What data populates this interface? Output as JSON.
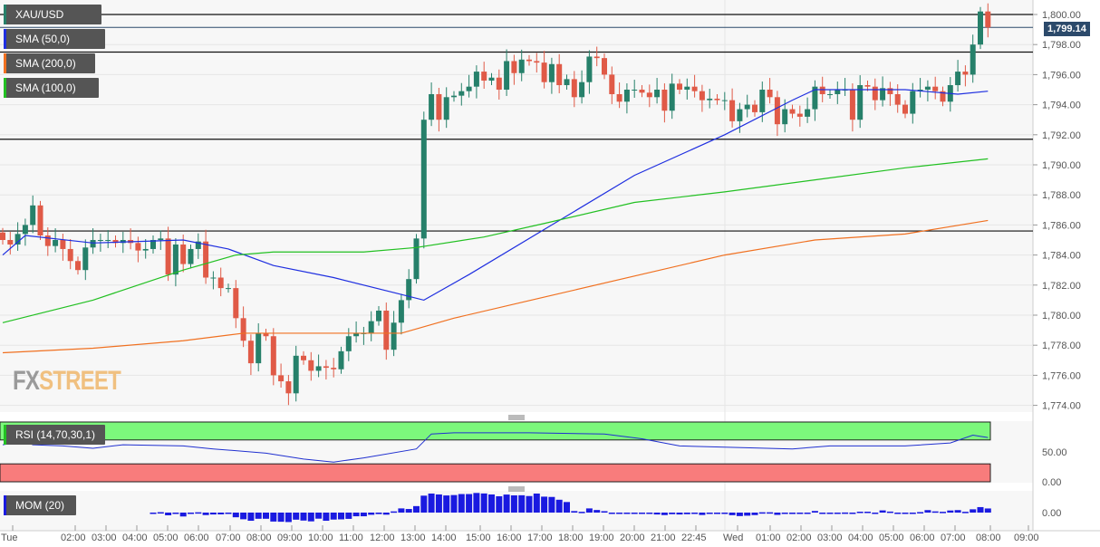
{
  "legend": {
    "symbol": "XAU/USD",
    "sma50": "SMA (50,0)",
    "sma200": "SMA (200,0)",
    "sma100": "SMA (100,0)",
    "rsi": "RSI (14,70,30,1)",
    "mom": "MOM (20)"
  },
  "colors": {
    "up": "#26806a",
    "down": "#e05a47",
    "sma50": "#1f2fe0",
    "sma100": "#22c022",
    "sma200": "#f07020",
    "rsi_over": "#7cf87c",
    "rsi_under": "#f87c7c",
    "mom": "#1a1ae0"
  },
  "logo": {
    "fx": "FX",
    "street": "STREET"
  },
  "current_price": "1,799.14",
  "chart_data": [
    {
      "type": "candlestick",
      "ylim": [
        1773,
        1802
      ],
      "yticks": [
        "1,800.00",
        "1,798.00",
        "1,796.00",
        "1,794.00",
        "1,792.00",
        "1,790.00",
        "1,788.00",
        "1,786.00",
        "1,784.00",
        "1,782.00",
        "1,780.00",
        "1,778.00",
        "1,776.00",
        "1,774.00"
      ],
      "ytick_values": [
        1800,
        1798,
        1796,
        1794,
        1792,
        1790,
        1788,
        1786,
        1784,
        1782,
        1780,
        1778,
        1776,
        1774
      ],
      "xticks": [
        "Tue",
        "02:00",
        "03:00",
        "04:00",
        "05:00",
        "06:00",
        "07:00",
        "08:00",
        "09:00",
        "10:00",
        "11:00",
        "12:00",
        "13:00",
        "14:00",
        "15:00",
        "16:00",
        "17:00",
        "18:00",
        "19:00",
        "20:00",
        "21:00",
        "22:45",
        "Wed",
        "01:00",
        "02:00",
        "03:00",
        "04:00",
        "05:00",
        "06:00",
        "07:00",
        "08:00",
        "09:00"
      ],
      "open_first": 1785.5,
      "closes": [
        1785.0,
        1784.7,
        1785.4,
        1786.0,
        1787.3,
        1785.3,
        1784.6,
        1785.0,
        1784.4,
        1783.6,
        1783.0,
        1784.5,
        1785.0,
        1785.0,
        1785.0,
        1784.8,
        1785.0,
        1784.8,
        1784.3,
        1784.4,
        1785.0,
        1785.1,
        1782.7,
        1784.7,
        1783.4,
        1784.4,
        1784.9,
        1782.5,
        1782.5,
        1781.8,
        1781.8,
        1779.8,
        1778.3,
        1776.8,
        1778.8,
        1778.6,
        1776.0,
        1775.6,
        1774.8,
        1777.3,
        1777.0,
        1776.3,
        1776.6,
        1776.5,
        1776.4,
        1777.6,
        1778.6,
        1778.8,
        1778.8,
        1779.6,
        1780.3,
        1777.7,
        1779.5,
        1781.0,
        1782.4,
        1785.1,
        1793.0,
        1794.7,
        1793.0,
        1794.5,
        1794.6,
        1794.9,
        1795.2,
        1796.2,
        1795.6,
        1795.8,
        1795.0,
        1796.9,
        1796.1,
        1797.0,
        1796.9,
        1796.8,
        1795.5,
        1796.7,
        1795.3,
        1795.7,
        1794.5,
        1795.5,
        1797.2,
        1797.1,
        1796.0,
        1794.7,
        1794.2,
        1795.0,
        1795.0,
        1794.8,
        1794.5,
        1795.0,
        1793.6,
        1795.4,
        1795.0,
        1795.2,
        1794.9,
        1794.3,
        1794.4,
        1794.3,
        1794.3,
        1792.9,
        1793.7,
        1794.0,
        1793.5,
        1795.0,
        1794.5,
        1792.7,
        1793.7,
        1793.4,
        1793.2,
        1793.7,
        1795.2,
        1794.7,
        1794.7,
        1795.0,
        1795.0,
        1793.0,
        1795.3,
        1795.2,
        1794.3,
        1795.1,
        1794.7,
        1794.0,
        1793.4,
        1794.9,
        1795.0,
        1795.2,
        1794.9,
        1794.2,
        1795.3,
        1796.2,
        1796.0,
        1798.0,
        1800.2,
        1799.14
      ],
      "hlines": [
        1800.0,
        1797.5,
        1791.7,
        1785.6
      ],
      "series": [
        {
          "name": "SMA (50,0)",
          "points": [
            [
              0,
              1784.0
            ],
            [
              3,
              1785.3
            ],
            [
              12,
              1784.8
            ],
            [
              24,
              1785.0
            ],
            [
              30,
              1784.4
            ],
            [
              36,
              1783.3
            ],
            [
              44,
              1782.5
            ],
            [
              52,
              1781.5
            ],
            [
              56,
              1781.0
            ],
            [
              62,
              1782.7
            ],
            [
              72,
              1785.7
            ],
            [
              84,
              1789.3
            ],
            [
              96,
              1792.0
            ],
            [
              105,
              1794.3
            ],
            [
              108,
              1795.0
            ],
            [
              120,
              1795.0
            ],
            [
              127,
              1794.7
            ],
            [
              131,
              1794.9
            ]
          ]
        },
        {
          "name": "SMA (100,0)",
          "points": [
            [
              0,
              1779.5
            ],
            [
              12,
              1781.0
            ],
            [
              24,
              1783.0
            ],
            [
              31,
              1784.0
            ],
            [
              36,
              1784.2
            ],
            [
              48,
              1784.2
            ],
            [
              55,
              1784.5
            ],
            [
              64,
              1785.2
            ],
            [
              72,
              1786.1
            ],
            [
              84,
              1787.5
            ],
            [
              96,
              1788.2
            ],
            [
              108,
              1789.0
            ],
            [
              120,
              1789.8
            ],
            [
              131,
              1790.4
            ]
          ]
        },
        {
          "name": "SMA (200,0)",
          "points": [
            [
              0,
              1777.5
            ],
            [
              12,
              1777.8
            ],
            [
              24,
              1778.3
            ],
            [
              32,
              1778.8
            ],
            [
              53,
              1778.8
            ],
            [
              60,
              1779.8
            ],
            [
              72,
              1781.2
            ],
            [
              84,
              1782.6
            ],
            [
              96,
              1784.0
            ],
            [
              108,
              1785.0
            ],
            [
              120,
              1785.4
            ],
            [
              131,
              1786.3
            ]
          ]
        }
      ]
    },
    {
      "type": "line",
      "name": "RSI (14,70,30,1)",
      "ylim": [
        0,
        100
      ],
      "bands": [
        30,
        70
      ],
      "yticks": [
        "50.00",
        "0.00"
      ],
      "ytick_values": [
        50,
        0
      ],
      "points": [
        [
          0,
          62
        ],
        [
          3,
          68
        ],
        [
          4,
          62
        ],
        [
          8,
          60
        ],
        [
          12,
          56
        ],
        [
          16,
          62
        ],
        [
          24,
          60
        ],
        [
          28,
          55
        ],
        [
          35,
          48
        ],
        [
          40,
          38
        ],
        [
          44,
          33
        ],
        [
          48,
          40
        ],
        [
          55,
          55
        ],
        [
          57,
          80
        ],
        [
          60,
          82
        ],
        [
          70,
          82
        ],
        [
          80,
          80
        ],
        [
          85,
          72
        ],
        [
          90,
          60
        ],
        [
          96,
          58
        ],
        [
          105,
          55
        ],
        [
          110,
          60
        ],
        [
          120,
          60
        ],
        [
          126,
          65
        ],
        [
          129,
          78
        ],
        [
          131,
          74
        ]
      ]
    },
    {
      "type": "bar",
      "name": "MOM (20)",
      "period": 20,
      "yticks": [
        "0.00"
      ]
    }
  ]
}
